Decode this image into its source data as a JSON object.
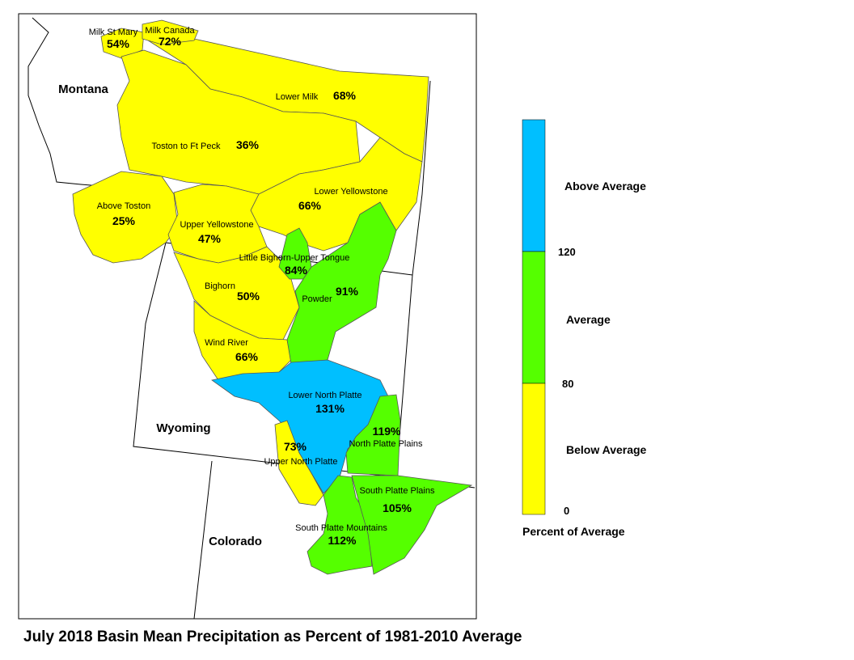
{
  "title": "July 2018 Basin Mean Precipitation as Percent of 1981-2010 Average",
  "states": [
    "Montana",
    "Wyoming",
    "Colorado"
  ],
  "colors": {
    "below": "#ffff00",
    "average": "#55ff00",
    "above": "#00bfff",
    "outline": "#000000"
  },
  "legend": {
    "title": "Percent of Average",
    "classes": [
      {
        "label": "Above Average",
        "color": "#00bfff"
      },
      {
        "label": "Average",
        "color": "#55ff00"
      },
      {
        "label": "Below Average",
        "color": "#ffff00"
      }
    ],
    "ticks": [
      "120",
      "80",
      "0"
    ]
  },
  "basins": [
    {
      "name": "Milk St Mary",
      "pct": "54%",
      "class": "below"
    },
    {
      "name": "Milk Canada",
      "pct": "72%",
      "class": "below"
    },
    {
      "name": "Lower Milk",
      "pct": "68%",
      "class": "below"
    },
    {
      "name": "Toston to Ft Peck",
      "pct": "36%",
      "class": "below"
    },
    {
      "name": "Above Toston",
      "pct": "25%",
      "class": "below"
    },
    {
      "name": "Upper Yellowstone",
      "pct": "47%",
      "class": "below"
    },
    {
      "name": "Lower Yellowstone",
      "pct": "66%",
      "class": "below"
    },
    {
      "name": "Little Bighorn-Upper Tongue",
      "pct": "84%",
      "class": "average"
    },
    {
      "name": "Powder",
      "pct": "91%",
      "class": "average"
    },
    {
      "name": "Bighorn",
      "pct": "50%",
      "class": "below"
    },
    {
      "name": "Wind River",
      "pct": "66%",
      "class": "below"
    },
    {
      "name": "Lower North Platte",
      "pct": "131%",
      "class": "above"
    },
    {
      "name": "North Platte Plains",
      "pct": "119%",
      "class": "average"
    },
    {
      "name": "Upper North Platte",
      "pct": "73%",
      "class": "below"
    },
    {
      "name": "South Platte Plains",
      "pct": "105%",
      "class": "average"
    },
    {
      "name": "South Platte Mountains",
      "pct": "112%",
      "class": "average"
    }
  ]
}
